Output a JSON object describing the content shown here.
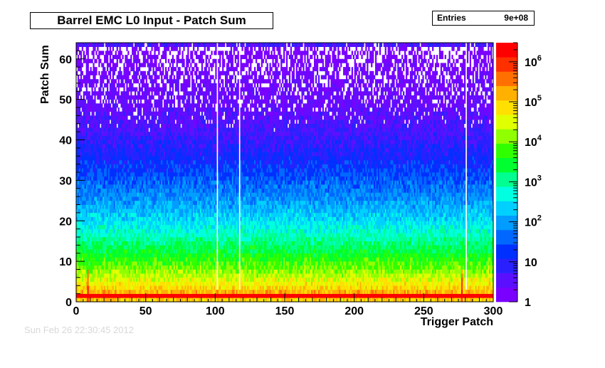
{
  "title": "Barrel EMC L0 Input - Patch Sum",
  "stats": {
    "label": "Entries",
    "value": "9e+08"
  },
  "timestamp": "Sun Feb 26 22:30:45 2012",
  "chart_data": {
    "type": "heatmap",
    "title": "Barrel EMC L0 Input - Patch Sum",
    "xlabel": "Trigger Patch",
    "ylabel": "Patch Sum",
    "xlim": [
      0,
      300
    ],
    "ylim": [
      0,
      64
    ],
    "x_ticks": [
      0,
      50,
      100,
      150,
      200,
      250,
      300
    ],
    "y_ticks": [
      0,
      10,
      20,
      30,
      40,
      50,
      60
    ],
    "z_scale": "log",
    "zlim": [
      1,
      3000000
    ],
    "z_ticks": [
      {
        "value": 1,
        "label": "1"
      },
      {
        "value": 10,
        "label": "10"
      },
      {
        "value": 100,
        "label": "10",
        "sup": "2"
      },
      {
        "value": 1000,
        "label": "10",
        "sup": "3"
      },
      {
        "value": 10000,
        "label": "10",
        "sup": "4"
      },
      {
        "value": 100000,
        "label": "10",
        "sup": "5"
      },
      {
        "value": 1000000,
        "label": "10",
        "sup": "6"
      }
    ],
    "palette": [
      "#7a00ff",
      "#5a10ff",
      "#2a20ff",
      "#0030ff",
      "#0068ff",
      "#009cff",
      "#00d0ff",
      "#00ffe0",
      "#00ff90",
      "#00ff30",
      "#30ff00",
      "#90ff00",
      "#e0ff00",
      "#ffe000",
      "#ffb000",
      "#ff7000",
      "#ff3000",
      "#ff0000"
    ],
    "profile_patch_sum": [
      0,
      1,
      2,
      3,
      4,
      5,
      6,
      8,
      10,
      12,
      15,
      20,
      25,
      30,
      35,
      40,
      45,
      50,
      55,
      60,
      62,
      63
    ],
    "profile_log10_counts": [
      5.0,
      6.5,
      5.2,
      4.9,
      4.7,
      4.5,
      4.3,
      4.0,
      3.7,
      3.4,
      3.0,
      2.4,
      1.9,
      1.5,
      1.1,
      0.8,
      0.5,
      0.3,
      0.15,
      0.05,
      0.0,
      0.6
    ],
    "dead_patches": [
      101,
      117,
      280
    ],
    "hot_patches": [
      8,
      277
    ]
  }
}
